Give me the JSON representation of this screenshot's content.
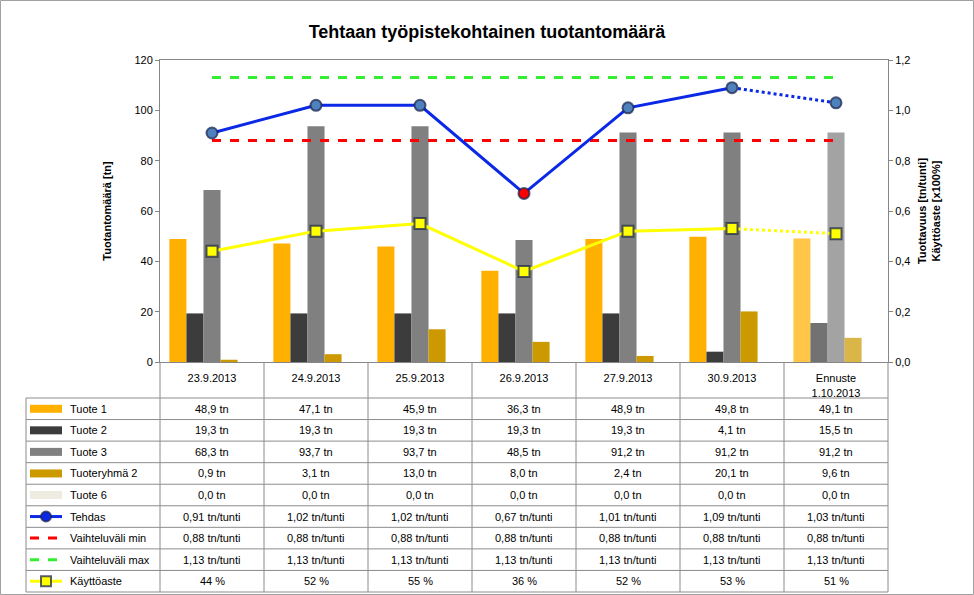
{
  "chart_data": {
    "type": "bar",
    "title": "Tehtaan työpistekohtainen tuotantomäärä",
    "ylabel": "Tuotantomäärä [tn]",
    "y2label": "Tuottavuus [tn/tunti]\nKäyttöaste [x100%]",
    "categories": [
      "23.9.2013",
      "24.9.2013",
      "25.9.2013",
      "26.9.2013",
      "27.9.2013",
      "30.9.2013",
      "Ennuste\n1.10.2013"
    ],
    "ylim": [
      0,
      120
    ],
    "yticks": [
      0,
      20,
      40,
      60,
      80,
      100,
      120
    ],
    "y2lim": [
      0,
      1.2
    ],
    "y2ticks": [
      {
        "value": 0,
        "label": "0,0"
      },
      {
        "value": 0.2,
        "label": "0,2"
      },
      {
        "value": 0.4,
        "label": "0,4"
      },
      {
        "value": 0.6,
        "label": "0,6"
      },
      {
        "value": 0.8,
        "label": "0,8"
      },
      {
        "value": 1.0,
        "label": "1,0"
      },
      {
        "value": 1.2,
        "label": "1,2"
      }
    ],
    "grid": false,
    "series": [
      {
        "name": "Tuote 1",
        "type": "bar",
        "color": "#FFB000",
        "values": [
          48.9,
          47.1,
          45.9,
          36.3,
          48.9,
          49.8,
          49.1
        ],
        "value_labels": [
          "48,9 tn",
          "47,1 tn",
          "45,9 tn",
          "36,3 tn",
          "48,9 tn",
          "49,8 tn",
          "49,1 tn"
        ]
      },
      {
        "name": "Tuote 2",
        "type": "bar",
        "color": "#3C3C3C",
        "values": [
          19.3,
          19.3,
          19.3,
          19.3,
          19.3,
          4.1,
          15.5
        ],
        "value_labels": [
          "19,3 tn",
          "19,3 tn",
          "19,3 tn",
          "19,3 tn",
          "19,3 tn",
          "4,1 tn",
          "15,5 tn"
        ]
      },
      {
        "name": "Tuote 3",
        "type": "bar",
        "color": "#808080",
        "values": [
          68.3,
          93.7,
          93.7,
          48.5,
          91.2,
          91.2,
          91.2
        ],
        "value_labels": [
          "68,3 tn",
          "93,7 tn",
          "93,7 tn",
          "48,5 tn",
          "91,2 tn",
          "91,2 tn",
          "91,2 tn"
        ]
      },
      {
        "name": "Tuoteryhmä 2",
        "type": "bar",
        "color": "#CC9900",
        "values": [
          0.9,
          3.1,
          13.0,
          8.0,
          2.4,
          20.1,
          9.6
        ],
        "value_labels": [
          "0,9 tn",
          "3,1 tn",
          "13,0 tn",
          "8,0 tn",
          "2,4 tn",
          "20,1 tn",
          "9,6 tn"
        ]
      },
      {
        "name": "Tuote 6",
        "type": "bar",
        "color": "#EEECE1",
        "values": [
          0,
          0,
          0,
          0,
          0,
          0,
          0
        ],
        "value_labels": [
          "0,0 tn",
          "0,0 tn",
          "0,0 tn",
          "0,0 tn",
          "0,0 tn",
          "0,0 tn",
          "0,0 tn"
        ]
      },
      {
        "name": "Tehdas",
        "type": "line",
        "axis": "y2",
        "color": "#0A28E6",
        "line_style": "solid",
        "marker": "circle",
        "colors": [
          "#4F81BD",
          "#4F81BD",
          "#4F81BD",
          "#FF0000",
          "#4F81BD",
          "#4F81BD",
          "#4F81BD"
        ],
        "values": [
          0.91,
          1.02,
          1.02,
          0.67,
          1.01,
          1.09,
          1.03
        ],
        "value_labels": [
          "0,91 tn/tunti",
          "1,02 tn/tunti",
          "1,02 tn/tunti",
          "0,67 tn/tunti",
          "1,01 tn/tunti",
          "1,09 tn/tunti",
          "1,03 tn/tunti"
        ]
      },
      {
        "name": "Vaihteluväli min",
        "type": "line",
        "axis": "y2",
        "color": "#FF0000",
        "line_style": "dash",
        "values": [
          0.88,
          0.88,
          0.88,
          0.88,
          0.88,
          0.88,
          0.88
        ],
        "value_labels": [
          "0,88 tn/tunti",
          "0,88 tn/tunti",
          "0,88 tn/tunti",
          "0,88 tn/tunti",
          "0,88 tn/tunti",
          "0,88 tn/tunti",
          "0,88 tn/tunti"
        ]
      },
      {
        "name": "Vaihteluväli max",
        "type": "line",
        "axis": "y2",
        "color": "#33EE33",
        "line_style": "dash",
        "values": [
          1.13,
          1.13,
          1.13,
          1.13,
          1.13,
          1.13,
          1.13
        ],
        "value_labels": [
          "1,13 tn/tunti",
          "1,13 tn/tunti",
          "1,13 tn/tunti",
          "1,13 tn/tunti",
          "1,13 tn/tunti",
          "1,13 tn/tunti",
          "1,13 tn/tunti"
        ]
      },
      {
        "name": "Käyttöaste",
        "type": "line",
        "axis": "y2",
        "color": "#FFFF00",
        "line_style": "solid",
        "marker": "square",
        "values": [
          0.44,
          0.52,
          0.55,
          0.36,
          0.52,
          0.53,
          0.51
        ],
        "value_labels": [
          "44 %",
          "52 %",
          "55 %",
          "36 %",
          "52 %",
          "53 %",
          "51 %"
        ]
      }
    ]
  }
}
